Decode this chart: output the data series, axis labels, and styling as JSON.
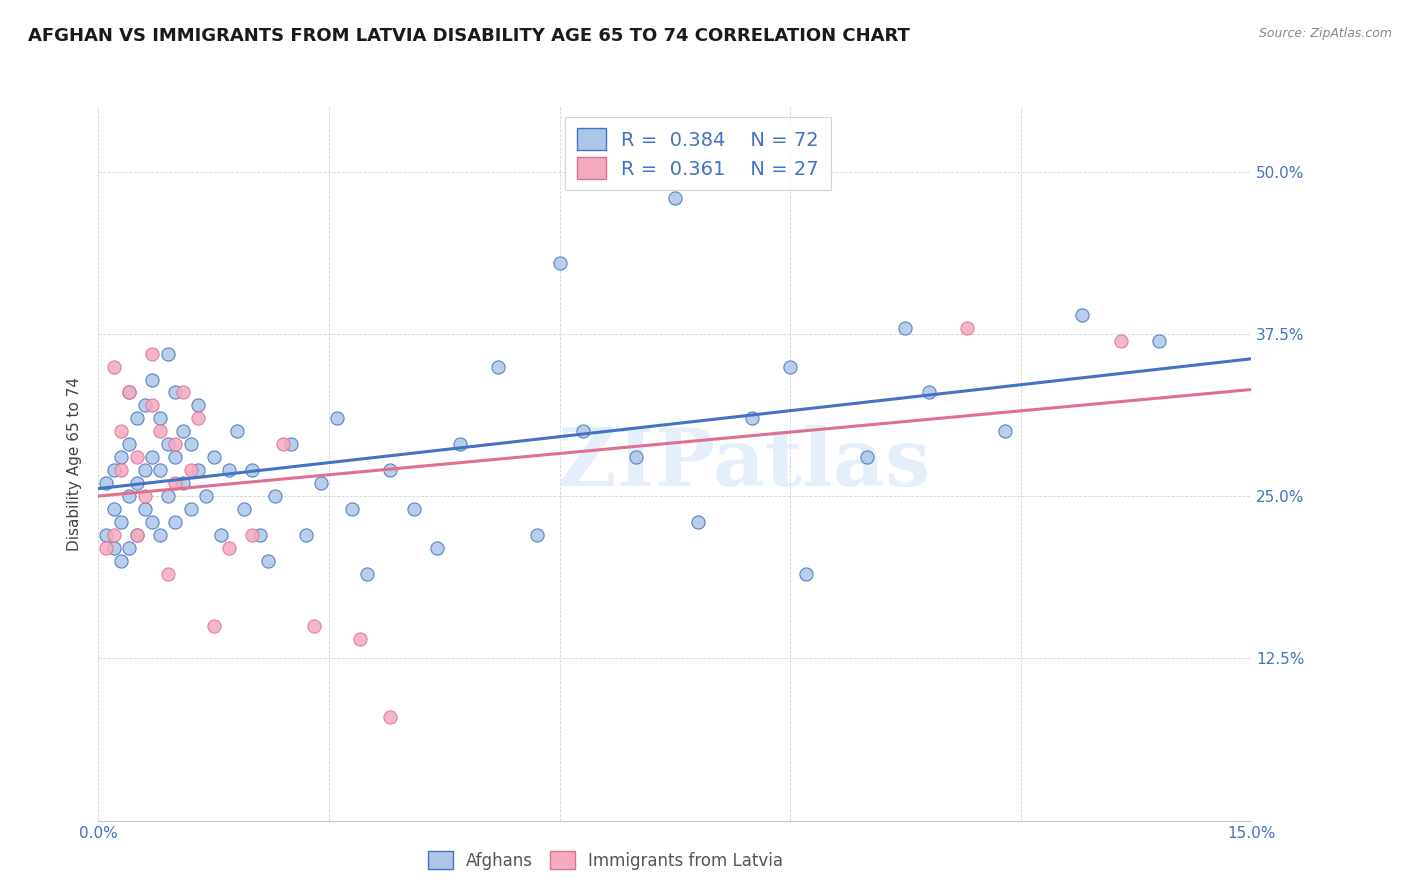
{
  "title": "AFGHAN VS IMMIGRANTS FROM LATVIA DISABILITY AGE 65 TO 74 CORRELATION CHART",
  "source": "Source: ZipAtlas.com",
  "ylabel": "Disability Age 65 to 74",
  "xlim": [
    0.0,
    0.15
  ],
  "ylim": [
    0.0,
    0.55
  ],
  "xtick_positions": [
    0.0,
    0.03,
    0.06,
    0.09,
    0.12,
    0.15
  ],
  "xtick_labels": [
    "0.0%",
    "",
    "",
    "",
    "",
    "15.0%"
  ],
  "ytick_positions": [
    0.0,
    0.125,
    0.25,
    0.375,
    0.5
  ],
  "ytick_labels_right": [
    "",
    "12.5%",
    "25.0%",
    "37.5%",
    "50.0%"
  ],
  "legend_r1": "0.384",
  "legend_n1": "72",
  "legend_r2": "0.361",
  "legend_n2": "27",
  "color_afghan": "#adc6e8",
  "color_latvia": "#f4abbe",
  "color_line_afghan": "#4472c4",
  "color_line_latvia": "#e07090",
  "watermark": "ZIPatlas",
  "title_fontsize": 13,
  "label_fontsize": 11,
  "tick_fontsize": 11,
  "source_fontsize": 9,
  "legend_fontsize": 14,
  "line_intercept_afghan": 0.205,
  "line_slope_afghan": 1.28,
  "line_intercept_latvia": 0.195,
  "line_slope_latvia": 1.1,
  "afghan_x": [
    0.001,
    0.001,
    0.002,
    0.002,
    0.002,
    0.003,
    0.003,
    0.003,
    0.004,
    0.004,
    0.004,
    0.004,
    0.005,
    0.005,
    0.005,
    0.006,
    0.006,
    0.006,
    0.007,
    0.007,
    0.007,
    0.008,
    0.008,
    0.008,
    0.009,
    0.009,
    0.009,
    0.01,
    0.01,
    0.01,
    0.011,
    0.011,
    0.012,
    0.012,
    0.013,
    0.013,
    0.014,
    0.015,
    0.016,
    0.017,
    0.018,
    0.019,
    0.02,
    0.021,
    0.022,
    0.023,
    0.025,
    0.027,
    0.029,
    0.031,
    0.033,
    0.035,
    0.038,
    0.041,
    0.044,
    0.047,
    0.052,
    0.057,
    0.063,
    0.07,
    0.078,
    0.085,
    0.092,
    0.1,
    0.108,
    0.118,
    0.128,
    0.138,
    0.06,
    0.075,
    0.09,
    0.105
  ],
  "afghan_y": [
    0.22,
    0.26,
    0.21,
    0.24,
    0.27,
    0.2,
    0.23,
    0.28,
    0.21,
    0.25,
    0.29,
    0.33,
    0.22,
    0.26,
    0.31,
    0.24,
    0.27,
    0.32,
    0.23,
    0.28,
    0.34,
    0.22,
    0.27,
    0.31,
    0.25,
    0.29,
    0.36,
    0.23,
    0.28,
    0.33,
    0.26,
    0.3,
    0.24,
    0.29,
    0.27,
    0.32,
    0.25,
    0.28,
    0.22,
    0.27,
    0.3,
    0.24,
    0.27,
    0.22,
    0.2,
    0.25,
    0.29,
    0.22,
    0.26,
    0.31,
    0.24,
    0.19,
    0.27,
    0.24,
    0.21,
    0.29,
    0.35,
    0.22,
    0.3,
    0.28,
    0.23,
    0.31,
    0.19,
    0.28,
    0.33,
    0.3,
    0.39,
    0.37,
    0.43,
    0.48,
    0.35,
    0.38
  ],
  "latvia_x": [
    0.001,
    0.002,
    0.002,
    0.003,
    0.003,
    0.004,
    0.005,
    0.005,
    0.006,
    0.007,
    0.007,
    0.008,
    0.009,
    0.01,
    0.01,
    0.011,
    0.012,
    0.013,
    0.015,
    0.017,
    0.02,
    0.024,
    0.028,
    0.034,
    0.038,
    0.113,
    0.133
  ],
  "latvia_y": [
    0.21,
    0.22,
    0.35,
    0.27,
    0.3,
    0.33,
    0.22,
    0.28,
    0.25,
    0.32,
    0.36,
    0.3,
    0.19,
    0.26,
    0.29,
    0.33,
    0.27,
    0.31,
    0.15,
    0.21,
    0.22,
    0.29,
    0.15,
    0.14,
    0.08,
    0.38,
    0.37
  ]
}
